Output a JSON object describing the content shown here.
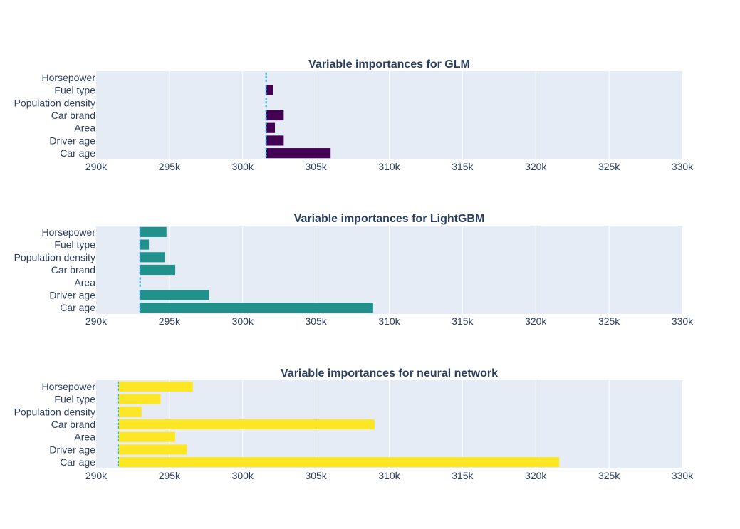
{
  "chart_data": [
    {
      "type": "bar",
      "orientation": "horizontal",
      "title": "Variable importances for GLM",
      "categories": [
        "Car age",
        "Driver age",
        "Area",
        "Car brand",
        "Population density",
        "Fuel type",
        "Horsepower"
      ],
      "baseline": 301600,
      "values": [
        306000,
        302800,
        302200,
        302800,
        301600,
        302100,
        301600
      ],
      "xlim": [
        290000,
        330000
      ],
      "xticks": [
        "290k",
        "295k",
        "300k",
        "305k",
        "310k",
        "315k",
        "320k",
        "325k",
        "330k"
      ],
      "bar_color": "#440154",
      "baseline_color": "#1f9ee8",
      "grid": true,
      "background": "#e5ecf6"
    },
    {
      "type": "bar",
      "orientation": "horizontal",
      "title": "Variable importances for LightGBM",
      "categories": [
        "Car age",
        "Driver age",
        "Area",
        "Car brand",
        "Population density",
        "Fuel type",
        "Horsepower"
      ],
      "baseline": 293000,
      "values": [
        308900,
        297700,
        293000,
        295400,
        294700,
        293600,
        294800
      ],
      "xlim": [
        290000,
        330000
      ],
      "xticks": [
        "290k",
        "295k",
        "300k",
        "305k",
        "310k",
        "315k",
        "320k",
        "325k",
        "330k"
      ],
      "bar_color": "#21918c",
      "baseline_color": "#1f9ee8",
      "grid": true,
      "background": "#e5ecf6"
    },
    {
      "type": "bar",
      "orientation": "horizontal",
      "title": "Variable importances for neural network",
      "categories": [
        "Car age",
        "Driver age",
        "Area",
        "Car brand",
        "Population density",
        "Fuel type",
        "Horsepower"
      ],
      "baseline": 291500,
      "values": [
        321600,
        296200,
        295400,
        309000,
        293100,
        294400,
        296600
      ],
      "xlim": [
        290000,
        330000
      ],
      "xticks": [
        "290k",
        "295k",
        "300k",
        "305k",
        "310k",
        "315k",
        "320k",
        "325k",
        "330k"
      ],
      "bar_color": "#fde725",
      "baseline_color": "#1f9ee8",
      "grid": true,
      "background": "#e5ecf6"
    }
  ]
}
